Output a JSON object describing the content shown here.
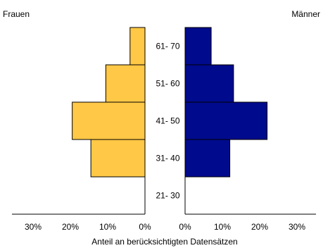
{
  "chart_data": {
    "type": "bar",
    "orientation": "horizontal",
    "layout": "population-pyramid",
    "categories": [
      "21- 30",
      "31- 40",
      "41- 50",
      "51- 60",
      "61- 70"
    ],
    "series": [
      {
        "name": "Frauen",
        "side": "left",
        "color": "#ffc846",
        "values": [
          0,
          14.5,
          19.5,
          10.5,
          4
        ]
      },
      {
        "name": "Männer",
        "side": "right",
        "color": "#000a8c",
        "values": [
          0,
          12,
          22,
          13,
          7
        ]
      }
    ],
    "xlabel": "Anteil an berücksichtigten Datensätzen",
    "xlim": [
      0,
      35
    ],
    "ticks": {
      "left": [
        {
          "value": 30,
          "label": "30%"
        },
        {
          "value": 20,
          "label": "20%"
        },
        {
          "value": 10,
          "label": "10%"
        },
        {
          "value": 0,
          "label": "0%"
        }
      ],
      "right": [
        {
          "value": 0,
          "label": "0%"
        },
        {
          "value": 10,
          "label": "10%"
        },
        {
          "value": 20,
          "label": "20%"
        },
        {
          "value": 30,
          "label": "30%"
        }
      ]
    },
    "grid": false,
    "legend": "none"
  }
}
